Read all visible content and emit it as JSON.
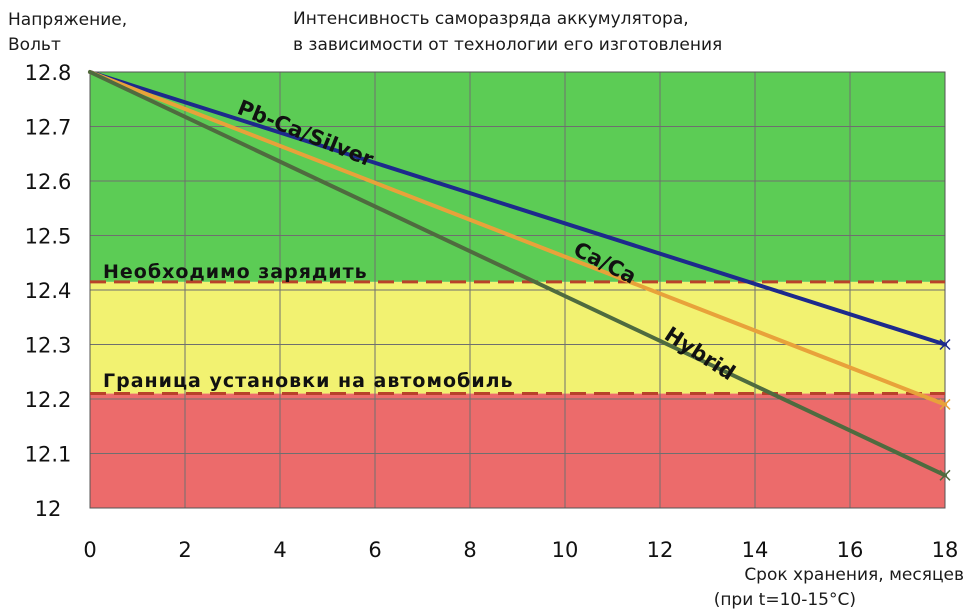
{
  "chart_data": {
    "type": "line",
    "title_lines": [
      "Интенсивность саморазряда аккумулятора,",
      "в зависимости от технологии его изготовления"
    ],
    "ylabel_lines": [
      "Напряжение,",
      "Вольт"
    ],
    "xlabel_lines": [
      "Срок хранения, месяцев",
      "(при t=10-15°C)"
    ],
    "xlim": [
      0,
      18
    ],
    "ylim": [
      12.0,
      12.8
    ],
    "x_ticks": [
      0,
      2,
      4,
      6,
      8,
      10,
      12,
      14,
      16,
      18
    ],
    "y_ticks": [
      12,
      12.1,
      12.2,
      12.3,
      12.4,
      12.5,
      12.6,
      12.7,
      12.8
    ],
    "y_tick_labels": [
      "12",
      "12.1",
      "12.2",
      "12.3",
      "12.4",
      "12.5",
      "12.6",
      "12.7",
      "12.8"
    ],
    "grid": true,
    "zones": [
      {
        "from": 12.0,
        "to": 12.21,
        "color": "#ec6b6b"
      },
      {
        "from": 12.21,
        "to": 12.415,
        "color": "#f2f271"
      },
      {
        "from": 12.415,
        "to": 12.8,
        "color": "#5ccc55"
      }
    ],
    "thresholds": [
      {
        "value": 12.415,
        "label": "Необходимо зарядить",
        "color": "#b8422a"
      },
      {
        "value": 12.21,
        "label": "Граница установки на автомобиль",
        "color": "#b8422a"
      }
    ],
    "series": [
      {
        "name": "Pb-Ca/Silver",
        "x": [
          0,
          18
        ],
        "y": [
          12.8,
          12.3
        ],
        "color": "#1d2a8c"
      },
      {
        "name": "Ca/Ca",
        "x": [
          0,
          18
        ],
        "y": [
          12.8,
          12.19
        ],
        "color": "#e8a23a"
      },
      {
        "name": "Hybrid",
        "x": [
          0,
          18
        ],
        "y": [
          12.8,
          12.06
        ],
        "color": "#4f6b3f"
      }
    ]
  }
}
